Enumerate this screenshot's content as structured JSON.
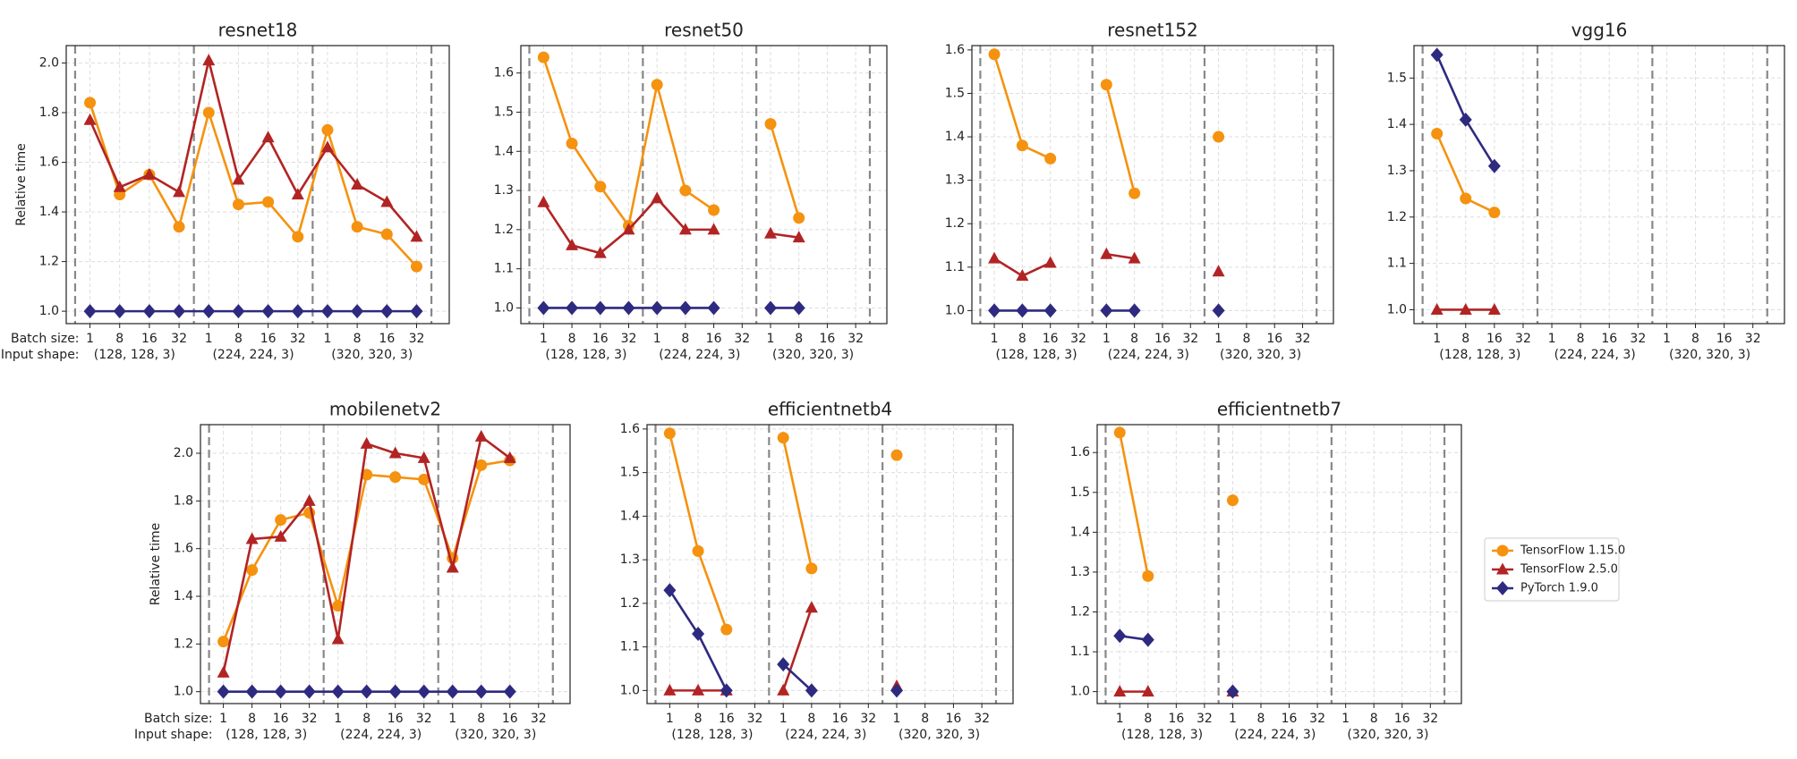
{
  "chart_data": [
    {
      "type": "line",
      "title": "resnet18",
      "ylabel": "Relative time",
      "row_labels": [
        "Batch size:",
        "Input shape:"
      ],
      "categories": [
        "1",
        "8",
        "16",
        "32",
        "1",
        "8",
        "16",
        "32",
        "1",
        "8",
        "16",
        "32"
      ],
      "groups": [
        "(128, 128, 3)",
        "(224, 224, 3)",
        "(320, 320, 3)"
      ],
      "ylim": [
        0.95,
        2.07
      ],
      "yticks": [
        {
          "value": 1.0,
          "label": "1.0"
        },
        {
          "value": 1.2,
          "label": "1.2"
        },
        {
          "value": 1.4,
          "label": "1.4"
        },
        {
          "value": 1.6,
          "label": "1.6"
        },
        {
          "value": 1.8,
          "label": "1.8"
        },
        {
          "value": 2.0,
          "label": "2.0"
        }
      ],
      "grid": true,
      "series": [
        {
          "name": "TensorFlow 1.15.0",
          "color": "#f5920f",
          "marker": "circle",
          "values": [
            1.84,
            1.47,
            1.55,
            1.34,
            1.8,
            1.43,
            1.44,
            1.3,
            1.73,
            1.34,
            1.31,
            1.18
          ]
        },
        {
          "name": "TensorFlow 2.5.0",
          "color": "#b22424",
          "marker": "triangle",
          "values": [
            1.77,
            1.5,
            1.55,
            1.48,
            2.01,
            1.53,
            1.7,
            1.47,
            1.66,
            1.51,
            1.44,
            1.3
          ]
        },
        {
          "name": "PyTorch 1.9.0",
          "color": "#2e2a80",
          "marker": "diamond",
          "values": [
            1,
            1,
            1,
            1,
            1,
            1,
            1,
            1,
            1,
            1,
            1,
            1
          ]
        }
      ]
    },
    {
      "type": "line",
      "title": "resnet50",
      "categories": [
        "1",
        "8",
        "16",
        "32",
        "1",
        "8",
        "16",
        "32",
        "1",
        "8",
        "16",
        "32"
      ],
      "groups": [
        "(128, 128, 3)",
        "(224, 224, 3)",
        "(320, 320, 3)"
      ],
      "ylim": [
        0.96,
        1.67
      ],
      "yticks": [
        {
          "value": 1.0,
          "label": "1.0"
        },
        1.1,
        1.2,
        1.3,
        1.4,
        1.5,
        1.6
      ],
      "grid": true,
      "series": [
        {
          "name": "TensorFlow 1.15.0",
          "color": "#f5920f",
          "marker": "circle",
          "values": [
            1.64,
            1.42,
            1.31,
            1.21,
            1.57,
            1.3,
            1.25,
            null,
            1.47,
            1.23,
            null,
            null
          ]
        },
        {
          "name": "TensorFlow 2.5.0",
          "color": "#b22424",
          "marker": "triangle",
          "values": [
            1.27,
            1.16,
            1.14,
            1.2,
            1.28,
            1.2,
            1.2,
            null,
            1.19,
            1.18,
            null,
            null
          ]
        },
        {
          "name": "PyTorch 1.9.0",
          "color": "#2e2a80",
          "marker": "diamond",
          "values": [
            1,
            1,
            1,
            1,
            1,
            1,
            1,
            null,
            1,
            1,
            null,
            null
          ]
        }
      ]
    },
    {
      "type": "line",
      "title": "resnet152",
      "categories": [
        "1",
        "8",
        "16",
        "32",
        "1",
        "8",
        "16",
        "32",
        "1",
        "8",
        "16",
        "32"
      ],
      "groups": [
        "(128, 128, 3)",
        "(224, 224, 3)",
        "(320, 320, 3)"
      ],
      "ylim": [
        0.97,
        1.61
      ],
      "yticks": [
        {
          "value": 1.0,
          "label": "1.0"
        },
        1.1,
        1.2,
        1.3,
        1.4,
        1.5,
        1.6
      ],
      "grid": true,
      "series": [
        {
          "name": "TensorFlow 1.15.0",
          "color": "#f5920f",
          "marker": "circle",
          "values": [
            1.59,
            1.38,
            1.35,
            null,
            1.52,
            1.27,
            null,
            null,
            1.4,
            null,
            null,
            null
          ]
        },
        {
          "name": "TensorFlow 2.5.0",
          "color": "#b22424",
          "marker": "triangle",
          "values": [
            1.12,
            1.08,
            1.11,
            null,
            1.13,
            1.12,
            null,
            null,
            1.09,
            null,
            null,
            null
          ]
        },
        {
          "name": "PyTorch 1.9.0",
          "color": "#2e2a80",
          "marker": "diamond",
          "values": [
            1,
            1,
            1,
            null,
            1,
            1,
            null,
            null,
            1,
            null,
            null,
            null
          ]
        }
      ]
    },
    {
      "type": "line",
      "title": "vgg16",
      "categories": [
        "1",
        "8",
        "16",
        "32",
        "1",
        "8",
        "16",
        "32",
        "1",
        "8",
        "16",
        "32"
      ],
      "groups": [
        "(128, 128, 3)",
        "(224, 224, 3)",
        "(320, 320, 3)"
      ],
      "ylim": [
        0.97,
        1.57
      ],
      "yticks": [
        {
          "value": 1.0,
          "label": "1.0"
        },
        1.1,
        1.2,
        1.3,
        1.4,
        1.5
      ],
      "grid": true,
      "series": [
        {
          "name": "TensorFlow 1.15.0",
          "color": "#f5920f",
          "marker": "circle",
          "values": [
            1.38,
            1.24,
            1.21,
            null,
            null,
            null,
            null,
            null,
            null,
            null,
            null,
            null
          ]
        },
        {
          "name": "TensorFlow 2.5.0",
          "color": "#b22424",
          "marker": "triangle",
          "values": [
            1,
            1,
            1,
            null,
            null,
            null,
            null,
            null,
            null,
            null,
            null,
            null
          ]
        },
        {
          "name": "PyTorch 1.9.0",
          "color": "#2e2a80",
          "marker": "diamond",
          "values": [
            1.55,
            1.41,
            1.31,
            null,
            null,
            null,
            null,
            null,
            null,
            null,
            null,
            null
          ]
        }
      ]
    },
    {
      "type": "line",
      "title": "mobilenetv2",
      "ylabel": "Relative time",
      "row_labels": [
        "Batch size:",
        "Input shape:"
      ],
      "categories": [
        "1",
        "8",
        "16",
        "32",
        "1",
        "8",
        "16",
        "32",
        "1",
        "8",
        "16",
        "32"
      ],
      "groups": [
        "(128, 128, 3)",
        "(224, 224, 3)",
        "(320, 320, 3)"
      ],
      "ylim": [
        0.95,
        2.12
      ],
      "yticks": [
        {
          "value": 1.0,
          "label": "1.0"
        },
        {
          "value": 1.2,
          "label": "1.2"
        },
        {
          "value": 1.4,
          "label": "1.4"
        },
        {
          "value": 1.6,
          "label": "1.6"
        },
        {
          "value": 1.8,
          "label": "1.8"
        },
        {
          "value": 2.0,
          "label": "2.0"
        }
      ],
      "grid": true,
      "series": [
        {
          "name": "TensorFlow 1.15.0",
          "color": "#f5920f",
          "marker": "circle",
          "values": [
            1.21,
            1.51,
            1.72,
            1.75,
            1.36,
            1.91,
            1.9,
            1.89,
            1.56,
            1.95,
            1.97,
            null
          ]
        },
        {
          "name": "TensorFlow 2.5.0",
          "color": "#b22424",
          "marker": "triangle",
          "values": [
            1.08,
            1.64,
            1.65,
            1.8,
            1.22,
            2.04,
            2.0,
            1.98,
            1.52,
            2.07,
            1.98,
            null
          ]
        },
        {
          "name": "PyTorch 1.9.0",
          "color": "#2e2a80",
          "marker": "diamond",
          "values": [
            1,
            1,
            1,
            1,
            1,
            1,
            1,
            1,
            1,
            1,
            1,
            null
          ]
        }
      ]
    },
    {
      "type": "line",
      "title": "efficientnetb4",
      "categories": [
        "1",
        "8",
        "16",
        "32",
        "1",
        "8",
        "16",
        "32",
        "1",
        "8",
        "16",
        "32"
      ],
      "groups": [
        "(128, 128, 3)",
        "(224, 224, 3)",
        "(320, 320, 3)"
      ],
      "ylim": [
        0.97,
        1.61
      ],
      "yticks": [
        {
          "value": 1.0,
          "label": "1.0"
        },
        1.1,
        1.2,
        1.3,
        1.4,
        1.5,
        1.6
      ],
      "grid": true,
      "series": [
        {
          "name": "TensorFlow 1.15.0",
          "color": "#f5920f",
          "marker": "circle",
          "values": [
            1.59,
            1.32,
            1.14,
            null,
            1.58,
            1.28,
            null,
            null,
            1.54,
            null,
            null,
            null
          ]
        },
        {
          "name": "TensorFlow 2.5.0",
          "color": "#b22424",
          "marker": "triangle",
          "values": [
            1,
            1,
            1,
            null,
            1,
            1.19,
            null,
            null,
            1.01,
            null,
            null,
            null
          ]
        },
        {
          "name": "PyTorch 1.9.0",
          "color": "#2e2a80",
          "marker": "diamond",
          "values": [
            1.23,
            1.13,
            1,
            null,
            1.06,
            1,
            null,
            null,
            1,
            null,
            null,
            null
          ]
        }
      ]
    },
    {
      "type": "line",
      "title": "efficientnetb7",
      "legend": true,
      "categories": [
        "1",
        "8",
        "16",
        "32",
        "1",
        "8",
        "16",
        "32",
        "1",
        "8",
        "16",
        "32"
      ],
      "groups": [
        "(128, 128, 3)",
        "(224, 224, 3)",
        "(320, 320, 3)"
      ],
      "ylim": [
        0.97,
        1.67
      ],
      "yticks": [
        {
          "value": 1.0,
          "label": "1.0"
        },
        1.1,
        1.2,
        1.3,
        1.4,
        1.5,
        1.6
      ],
      "grid": true,
      "series": [
        {
          "name": "TensorFlow 1.15.0",
          "color": "#f5920f",
          "marker": "circle",
          "values": [
            1.65,
            1.29,
            null,
            null,
            1.48,
            null,
            null,
            null,
            null,
            null,
            null,
            null
          ]
        },
        {
          "name": "TensorFlow 2.5.0",
          "color": "#b22424",
          "marker": "triangle",
          "values": [
            1,
            1,
            null,
            null,
            1,
            null,
            null,
            null,
            null,
            null,
            null,
            null
          ]
        },
        {
          "name": "PyTorch 1.9.0",
          "color": "#2e2a80",
          "marker": "diamond",
          "values": [
            1.14,
            1.13,
            null,
            null,
            1,
            null,
            null,
            null,
            null,
            null,
            null,
            null
          ]
        }
      ]
    }
  ]
}
